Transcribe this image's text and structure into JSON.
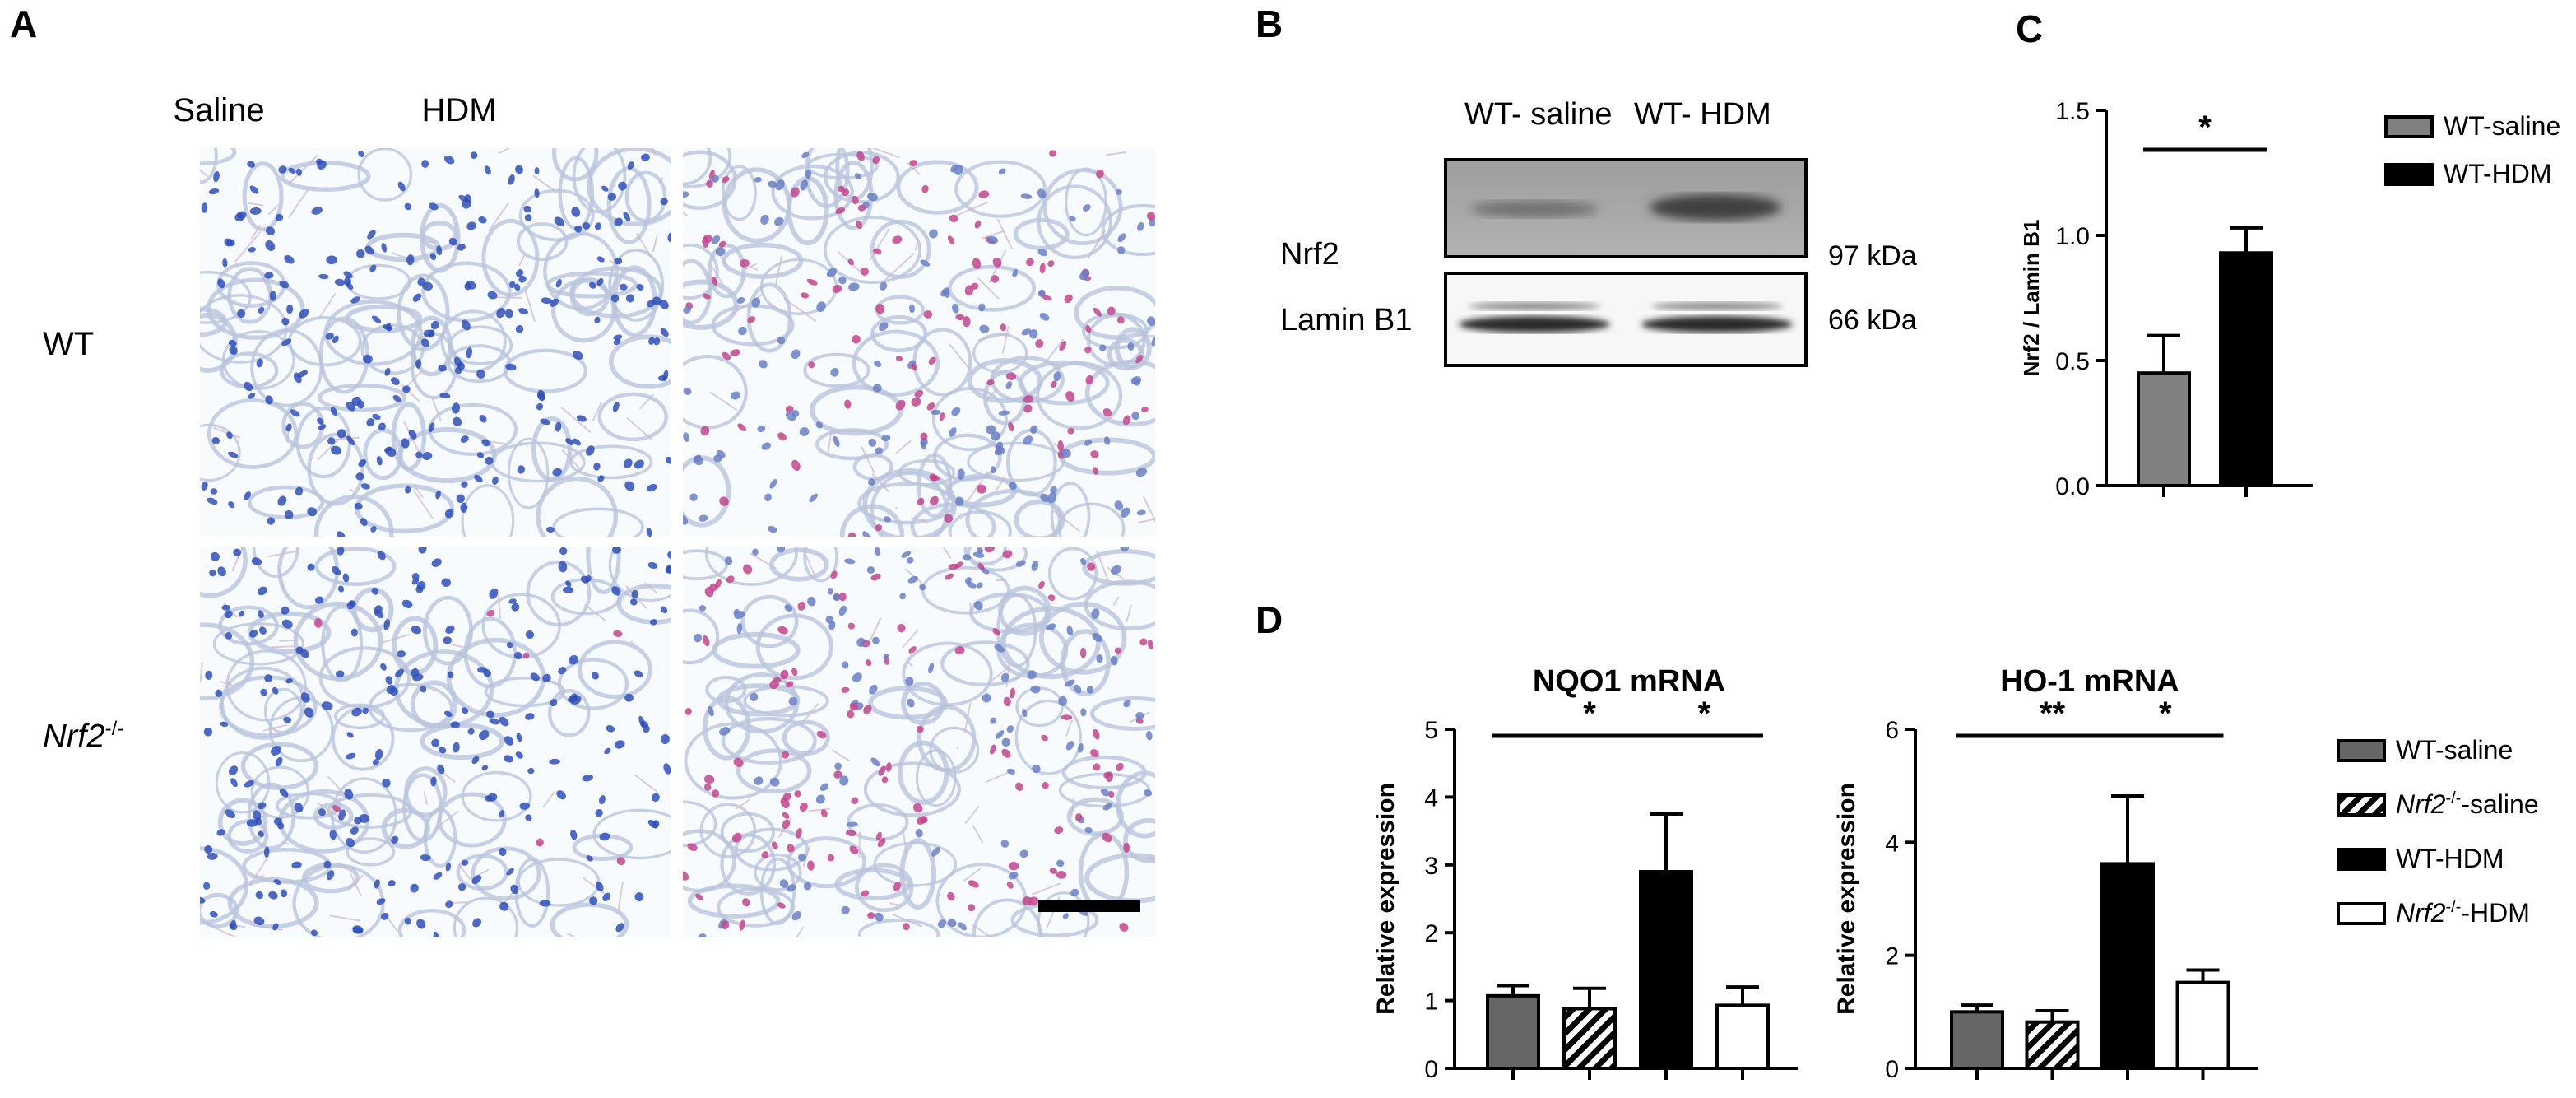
{
  "panels": {
    "a": {
      "letter": "A",
      "col_titles": [
        "Saline",
        "HDM"
      ],
      "row_labels": {
        "wt": "WT",
        "ko_main": "Nrf2",
        "ko_sup": "-/-"
      }
    },
    "b": {
      "letter": "B",
      "lane_labels": [
        "WT- saline",
        "WT- HDM"
      ],
      "bands": [
        {
          "name": "Nrf2",
          "kda": "97 kDa"
        },
        {
          "name": "Lamin B1",
          "kda": "66 kDa"
        }
      ]
    },
    "c": {
      "letter": "C"
    },
    "d": {
      "letter": "D",
      "ko_sup": "-/-"
    }
  },
  "colors": {
    "saline": "#666666",
    "hdm": "#000000",
    "open": "#ffffff",
    "nucleus_blue": "#2f4fb8",
    "nucleus_pink": "#c2458e"
  },
  "chart_data": [
    {
      "id": "C",
      "type": "bar",
      "title": "",
      "ylabel": "Nrf2 / Lamin B1",
      "ylim": [
        0,
        1.5
      ],
      "yticks": [
        "0.0",
        "0.5",
        "1.0",
        "1.5"
      ],
      "categories": [
        "WT-saline",
        "WT-HDM"
      ],
      "values": [
        0.45,
        0.93
      ],
      "errors": [
        0.15,
        0.1
      ],
      "fills": [
        "#808080",
        "#000000"
      ],
      "patterns": [
        "solid",
        "solid"
      ],
      "significance": [
        {
          "from": 0,
          "to": 1,
          "label": "*"
        }
      ],
      "legend": {
        "position": "right",
        "entries": [
          {
            "main": "WT-saline",
            "fill": "#808080",
            "pattern": "solid"
          },
          {
            "main": "WT-HDM",
            "fill": "#000000",
            "pattern": "solid"
          }
        ]
      }
    },
    {
      "id": "D1",
      "type": "bar",
      "title": "NQO1 mRNA",
      "ylabel": "Relative expression",
      "ylim": [
        0,
        5
      ],
      "yticks": [
        "0",
        "1",
        "2",
        "3",
        "4",
        "5"
      ],
      "categories": [
        "WT-saline",
        "Nrf2-/--saline",
        "WT-HDM",
        "Nrf2-/--HDM"
      ],
      "values": [
        1.07,
        0.88,
        2.9,
        0.93
      ],
      "errors": [
        0.15,
        0.3,
        0.85,
        0.27
      ],
      "fills": [
        "#666666",
        "#ffffff",
        "#000000",
        "#ffffff"
      ],
      "patterns": [
        "solid",
        "hatch",
        "solid",
        "solid"
      ],
      "significance": [
        {
          "from": 0,
          "to": 2,
          "label": "*"
        },
        {
          "from": 2,
          "to": 3,
          "label": "*"
        }
      ]
    },
    {
      "id": "D2",
      "type": "bar",
      "title": "HO-1 mRNA",
      "ylabel": "Relative expression",
      "ylim": [
        0,
        6
      ],
      "yticks": [
        "0",
        "2",
        "4",
        "6"
      ],
      "categories": [
        "WT-saline",
        "Nrf2-/--saline",
        "WT-HDM",
        "Nrf2-/--HDM"
      ],
      "values": [
        1.0,
        0.82,
        3.62,
        1.52
      ],
      "errors": [
        0.12,
        0.2,
        1.2,
        0.22
      ],
      "fills": [
        "#666666",
        "#ffffff",
        "#000000",
        "#ffffff"
      ],
      "patterns": [
        "solid",
        "hatch",
        "solid",
        "solid"
      ],
      "significance": [
        {
          "from": 0,
          "to": 2,
          "label": "**"
        },
        {
          "from": 2,
          "to": 3,
          "label": "*"
        }
      ],
      "legend": {
        "position": "right",
        "entries": [
          {
            "main": "WT-saline",
            "fill": "#666666",
            "pattern": "solid"
          },
          {
            "ital": "Nrf2",
            "sup": "-/-",
            "main": "-saline",
            "fill": "#ffffff",
            "pattern": "hatch"
          },
          {
            "main": "WT-HDM",
            "fill": "#000000",
            "pattern": "solid"
          },
          {
            "ital": "Nrf2",
            "sup": "-/-",
            "main": "-HDM",
            "fill": "#ffffff",
            "pattern": "solid"
          }
        ]
      }
    }
  ]
}
